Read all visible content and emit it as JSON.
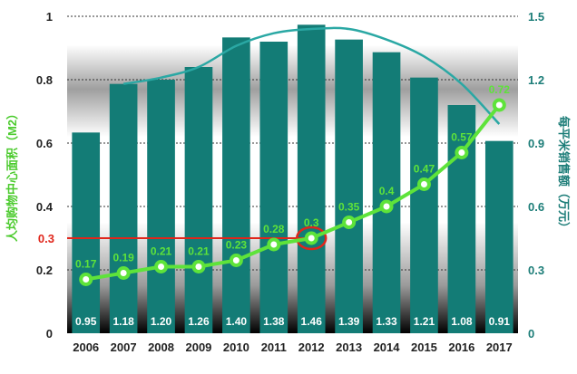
{
  "chart_data": {
    "type": "bar+line",
    "categories": [
      "2006",
      "2007",
      "2008",
      "2009",
      "2010",
      "2011",
      "2012",
      "2013",
      "2014",
      "2015",
      "2016",
      "2017"
    ],
    "series": [
      {
        "name": "每平米销售额（万元）",
        "type": "bar",
        "axis": "right",
        "values": [
          0.95,
          1.18,
          1.2,
          1.26,
          1.4,
          1.38,
          1.46,
          1.39,
          1.33,
          1.21,
          1.08,
          0.91
        ],
        "labels": [
          "0.95",
          "1.18",
          "1.20",
          "1.26",
          "1.40",
          "1.38",
          "1.46",
          "1.39",
          "1.33",
          "1.21",
          "1.08",
          "0.91"
        ]
      },
      {
        "name": "人均购物中心面积（M2）",
        "type": "line",
        "axis": "left",
        "values": [
          0.17,
          0.19,
          0.21,
          0.21,
          0.23,
          0.28,
          0.3,
          0.35,
          0.4,
          0.47,
          0.57,
          0.72
        ],
        "labels": [
          "0.17",
          "0.19",
          "0.21",
          "0.21",
          "0.23",
          "0.28",
          "0.3",
          "0.35",
          "0.4",
          "0.47",
          "0.57",
          "0.72"
        ]
      },
      {
        "name": "trend",
        "type": "line",
        "axis": "right",
        "style": "trend",
        "x": [
          "2007",
          "2008",
          "2009",
          "2010",
          "2011",
          "2012",
          "2013",
          "2014",
          "2015",
          "2016",
          "2017"
        ],
        "values": [
          1.18,
          1.21,
          1.26,
          1.36,
          1.42,
          1.44,
          1.44,
          1.39,
          1.31,
          1.18,
          0.99
        ]
      }
    ],
    "left_axis": {
      "label": "人均购物中心面积（M2）",
      "ylim": [
        0,
        1
      ],
      "ticks": [
        "0",
        "0.2",
        "0.4",
        "0.6",
        "0.8",
        "1"
      ]
    },
    "right_axis": {
      "label": "每平米销售额（万元）",
      "ylim": [
        0,
        1.5
      ],
      "ticks": [
        "0",
        "0.3",
        "0.6",
        "0.9",
        "1.2",
        "1.5"
      ]
    },
    "reference": {
      "label": "0.3",
      "value": 0.3,
      "at_category": "2012",
      "color": "#e0261b"
    },
    "colors": {
      "bar": "#137c76",
      "line": "#5ee33a",
      "trend": "#2aa8a4",
      "reference": "#e0261b"
    },
    "grid": true
  }
}
